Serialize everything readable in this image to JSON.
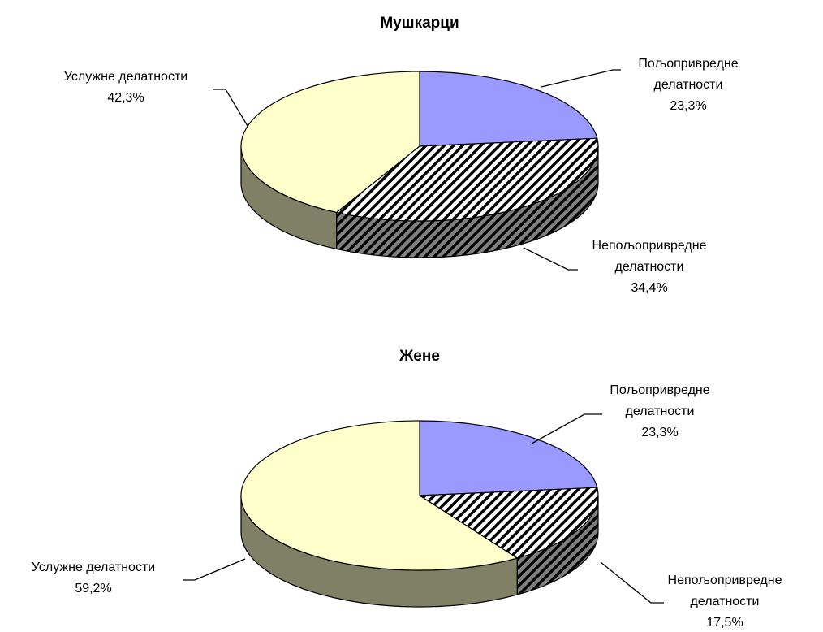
{
  "chart_data": [
    {
      "type": "pie",
      "title": "Мушкарци",
      "categories": [
        "Пољопривредне делатности",
        "Непољопривредне делатности",
        "Услужне делатности"
      ],
      "values": [
        23.3,
        34.4,
        42.3
      ],
      "value_labels": [
        "23,3%",
        "34,4%",
        "42,3%"
      ],
      "colors": [
        "#9999ff",
        "#ffffff",
        "#ffffcc"
      ],
      "patterns": [
        "solid",
        "hatch",
        "solid"
      ]
    },
    {
      "type": "pie",
      "title": "Жене",
      "categories": [
        "Пољопривредне делатности",
        "Непољопривредне делатности",
        "Услужне делатности"
      ],
      "values": [
        23.3,
        17.5,
        59.2
      ],
      "value_labels": [
        "23,3%",
        "17,5%",
        "59,2%"
      ],
      "colors": [
        "#9999ff",
        "#ffffff",
        "#ffffcc"
      ],
      "patterns": [
        "solid",
        "hatch",
        "solid"
      ]
    }
  ]
}
